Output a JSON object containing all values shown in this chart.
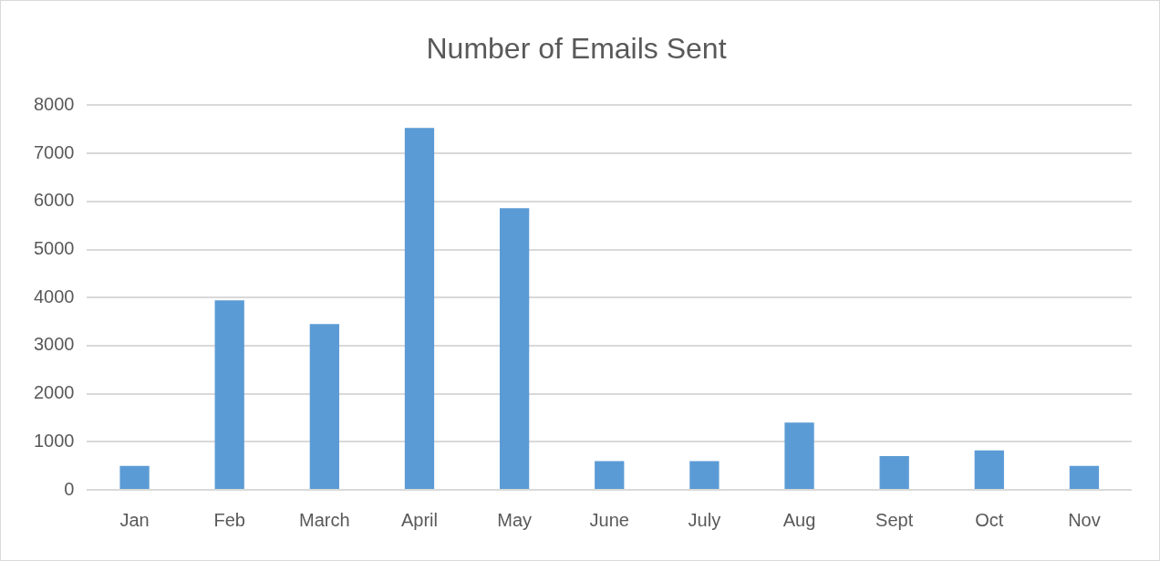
{
  "chart_data": {
    "type": "bar",
    "title": "Number of Emails Sent",
    "categories": [
      "Jan",
      "Feb",
      "March",
      "April",
      "May",
      "June",
      "July",
      "Aug",
      "Sept",
      "Oct",
      "Nov"
    ],
    "values": [
      500,
      3940,
      3450,
      7530,
      5860,
      600,
      600,
      1400,
      700,
      820,
      500
    ],
    "color": "#5b9bd5",
    "ylim": [
      0,
      8000
    ],
    "yticks": [
      0,
      1000,
      2000,
      3000,
      4000,
      5000,
      6000,
      7000,
      8000
    ],
    "grid": "y"
  }
}
